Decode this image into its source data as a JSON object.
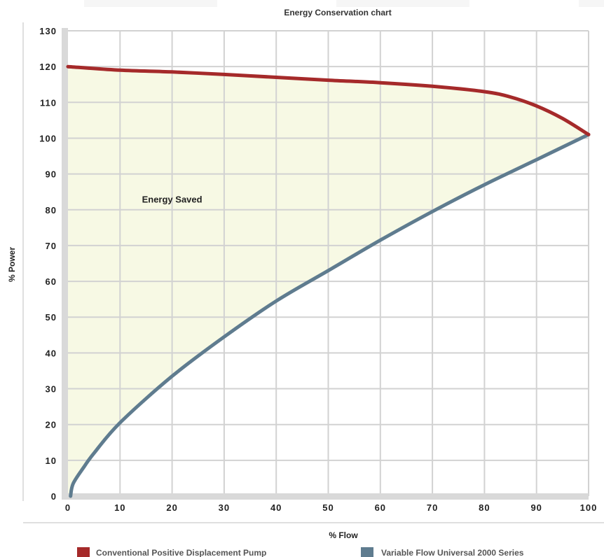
{
  "chart_data": {
    "type": "line",
    "title": "Energy Conservation chart",
    "xlabel": "% Flow",
    "ylabel": "% Power",
    "xlim": [
      0,
      100
    ],
    "ylim": [
      0,
      130
    ],
    "x_ticks": [
      0,
      10,
      20,
      30,
      40,
      50,
      60,
      70,
      80,
      90,
      100
    ],
    "y_ticks": [
      0,
      10,
      20,
      30,
      40,
      50,
      60,
      70,
      80,
      90,
      100,
      110,
      120,
      130
    ],
    "grid": true,
    "legend_position": "bottom",
    "fill_between_series": true,
    "annotations": [
      {
        "text": "Energy Saved",
        "x": 20,
        "y": 83
      }
    ],
    "series": [
      {
        "name": "Conventional Positive Displacement Pump",
        "color": "#a52a2a",
        "x": [
          0,
          10,
          20,
          30,
          40,
          50,
          60,
          70,
          80,
          85,
          90,
          95,
          100
        ],
        "y": [
          120,
          119,
          118.5,
          117.8,
          117,
          116.2,
          115.5,
          114.5,
          113,
          111.5,
          109,
          105.5,
          101
        ]
      },
      {
        "name": "Variable Flow Universal 2000 Series",
        "color": "#5f7c8f",
        "x": [
          0.5,
          1,
          3,
          5,
          10,
          20,
          30,
          40,
          50,
          60,
          70,
          80,
          90,
          100
        ],
        "y": [
          0,
          3.5,
          8,
          12,
          20.5,
          33.5,
          44.5,
          54.5,
          63,
          71.5,
          79.5,
          87,
          94,
          101
        ]
      }
    ]
  },
  "colors": {
    "fill": "#f7f9e4",
    "grid": "#d2d2d2"
  }
}
